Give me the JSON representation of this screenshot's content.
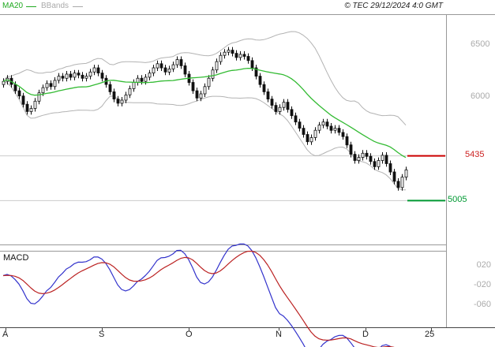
{
  "header": {
    "legend": [
      {
        "label": "MA20",
        "color": "#22aa22"
      },
      {
        "label": "BBands",
        "color": "#aaaaaa"
      }
    ],
    "copyright": "© TEC 29/12/2024 4:0 GMT"
  },
  "colors": {
    "background": "#ffffff",
    "frame": "#999999",
    "axis": "#444444",
    "grid": "#cccccc",
    "candle": "#111111",
    "ma20": "#33bb33",
    "bband": "#b3b3b3",
    "macd_line": "#3333cc",
    "macd_signal": "#bb2222",
    "level_red": "#cc0000",
    "level_green": "#009933"
  },
  "chart_data": [
    {
      "type": "candlestick",
      "title": "",
      "xlabel": "",
      "ylabel": "",
      "ylim": [
        4580,
        6800
      ],
      "x_labels": [
        "A",
        "S",
        "O",
        "N",
        "D",
        "25"
      ],
      "y_axis_labels": [
        {
          "text": "6500",
          "value": 6500,
          "color": "#aaaaaa"
        },
        {
          "text": "6000",
          "value": 6000,
          "color": "#aaaaaa"
        },
        {
          "text": "5435",
          "value": 5435,
          "color": "#cc2222",
          "role": "resistance"
        },
        {
          "text": "5005",
          "value": 5005,
          "color": "#009933",
          "role": "support"
        }
      ],
      "levels": [
        {
          "value": 5435,
          "color": "#cc0000",
          "name": "resistance-level"
        },
        {
          "value": 5005,
          "color": "#009933",
          "name": "support-level"
        }
      ],
      "indicators": {
        "ma20": {
          "period": 20
        },
        "bollinger_bands": {
          "period": 20,
          "stddev": 2
        }
      },
      "candles_format": [
        "open",
        "high",
        "low",
        "close"
      ],
      "candles": [
        [
          6120,
          6180,
          6090,
          6150
        ],
        [
          6150,
          6210,
          6120,
          6180
        ],
        [
          6180,
          6210,
          6090,
          6120
        ],
        [
          6120,
          6150,
          6030,
          6060
        ],
        [
          6060,
          6090,
          5980,
          6010
        ],
        [
          6010,
          6040,
          5900,
          5930
        ],
        [
          5930,
          5960,
          5830,
          5860
        ],
        [
          5860,
          5920,
          5830,
          5890
        ],
        [
          5890,
          5990,
          5860,
          5960
        ],
        [
          5960,
          6070,
          5930,
          6040
        ],
        [
          6040,
          6120,
          6010,
          6090
        ],
        [
          6090,
          6160,
          6060,
          6130
        ],
        [
          6130,
          6160,
          6070,
          6100
        ],
        [
          6100,
          6190,
          6070,
          6160
        ],
        [
          6160,
          6230,
          6130,
          6200
        ],
        [
          6200,
          6230,
          6150,
          6180
        ],
        [
          6180,
          6250,
          6150,
          6220
        ],
        [
          6220,
          6250,
          6160,
          6190
        ],
        [
          6190,
          6260,
          6160,
          6230
        ],
        [
          6230,
          6260,
          6180,
          6210
        ],
        [
          6210,
          6240,
          6150,
          6180
        ],
        [
          6180,
          6230,
          6150,
          6200
        ],
        [
          6200,
          6270,
          6170,
          6240
        ],
        [
          6240,
          6310,
          6210,
          6280
        ],
        [
          6280,
          6310,
          6200,
          6230
        ],
        [
          6230,
          6260,
          6150,
          6180
        ],
        [
          6180,
          6210,
          6090,
          6120
        ],
        [
          6120,
          6150,
          6020,
          6050
        ],
        [
          6050,
          6080,
          5950,
          5980
        ],
        [
          5980,
          6010,
          5910,
          5940
        ],
        [
          5940,
          6000,
          5910,
          5970
        ],
        [
          5970,
          6050,
          5940,
          6020
        ],
        [
          6020,
          6110,
          5990,
          6080
        ],
        [
          6080,
          6170,
          6050,
          6140
        ],
        [
          6140,
          6210,
          6110,
          6180
        ],
        [
          6180,
          6210,
          6120,
          6150
        ],
        [
          6150,
          6220,
          6120,
          6190
        ],
        [
          6190,
          6260,
          6160,
          6230
        ],
        [
          6230,
          6310,
          6200,
          6280
        ],
        [
          6280,
          6350,
          6250,
          6320
        ],
        [
          6320,
          6350,
          6250,
          6280
        ],
        [
          6280,
          6310,
          6210,
          6240
        ],
        [
          6240,
          6300,
          6210,
          6270
        ],
        [
          6270,
          6340,
          6240,
          6310
        ],
        [
          6310,
          6390,
          6280,
          6360
        ],
        [
          6360,
          6390,
          6270,
          6300
        ],
        [
          6300,
          6330,
          6190,
          6220
        ],
        [
          6220,
          6250,
          6110,
          6140
        ],
        [
          6140,
          6170,
          6030,
          6060
        ],
        [
          6060,
          6090,
          5960,
          5990
        ],
        [
          5990,
          6060,
          5960,
          6030
        ],
        [
          6030,
          6130,
          6000,
          6100
        ],
        [
          6100,
          6210,
          6070,
          6180
        ],
        [
          6180,
          6290,
          6150,
          6260
        ],
        [
          6260,
          6370,
          6230,
          6340
        ],
        [
          6340,
          6430,
          6310,
          6400
        ],
        [
          6400,
          6460,
          6370,
          6430
        ],
        [
          6430,
          6480,
          6400,
          6450
        ],
        [
          6450,
          6480,
          6390,
          6420
        ],
        [
          6420,
          6450,
          6350,
          6380
        ],
        [
          6380,
          6440,
          6350,
          6410
        ],
        [
          6410,
          6440,
          6360,
          6390
        ],
        [
          6390,
          6420,
          6320,
          6350
        ],
        [
          6350,
          6380,
          6250,
          6280
        ],
        [
          6280,
          6310,
          6170,
          6200
        ],
        [
          6200,
          6230,
          6090,
          6120
        ],
        [
          6120,
          6150,
          6020,
          6050
        ],
        [
          6050,
          6080,
          5950,
          5980
        ],
        [
          5980,
          6010,
          5890,
          5920
        ],
        [
          5920,
          5950,
          5830,
          5860
        ],
        [
          5860,
          5930,
          5830,
          5900
        ],
        [
          5900,
          5980,
          5870,
          5950
        ],
        [
          5950,
          5980,
          5850,
          5880
        ],
        [
          5880,
          5910,
          5790,
          5820
        ],
        [
          5820,
          5850,
          5730,
          5760
        ],
        [
          5760,
          5790,
          5670,
          5700
        ],
        [
          5700,
          5730,
          5610,
          5640
        ],
        [
          5640,
          5670,
          5540,
          5570
        ],
        [
          5570,
          5640,
          5540,
          5610
        ],
        [
          5610,
          5710,
          5580,
          5680
        ],
        [
          5680,
          5760,
          5650,
          5730
        ],
        [
          5730,
          5790,
          5700,
          5760
        ],
        [
          5760,
          5790,
          5690,
          5720
        ],
        [
          5720,
          5750,
          5650,
          5680
        ],
        [
          5680,
          5730,
          5650,
          5700
        ],
        [
          5700,
          5730,
          5630,
          5660
        ],
        [
          5660,
          5690,
          5590,
          5620
        ],
        [
          5620,
          5650,
          5510,
          5540
        ],
        [
          5540,
          5570,
          5420,
          5450
        ],
        [
          5450,
          5480,
          5360,
          5390
        ],
        [
          5390,
          5450,
          5360,
          5420
        ],
        [
          5420,
          5490,
          5390,
          5460
        ],
        [
          5460,
          5490,
          5400,
          5430
        ],
        [
          5430,
          5460,
          5350,
          5380
        ],
        [
          5380,
          5410,
          5300,
          5330
        ],
        [
          5330,
          5420,
          5300,
          5390
        ],
        [
          5390,
          5470,
          5360,
          5440
        ],
        [
          5440,
          5470,
          5330,
          5360
        ],
        [
          5360,
          5390,
          5250,
          5280
        ],
        [
          5280,
          5310,
          5160,
          5190
        ],
        [
          5190,
          5220,
          5100,
          5130
        ],
        [
          5130,
          5260,
          5100,
          5230
        ],
        [
          5230,
          5330,
          5200,
          5300
        ]
      ]
    },
    {
      "type": "line",
      "label": "MACD",
      "params": {
        "fast": 12,
        "slow": 26,
        "signal": 9
      },
      "series": [
        {
          "name": "MACD",
          "color": "#3333cc",
          "derived_from": "candle closes, EMA12 - EMA26"
        },
        {
          "name": "Signal",
          "color": "#bb2222",
          "derived_from": "EMA9 of MACD"
        }
      ],
      "y_ticks": [
        20,
        -20,
        -60
      ],
      "y_axis_labels": [
        "020",
        "-020",
        "-060"
      ]
    }
  ]
}
